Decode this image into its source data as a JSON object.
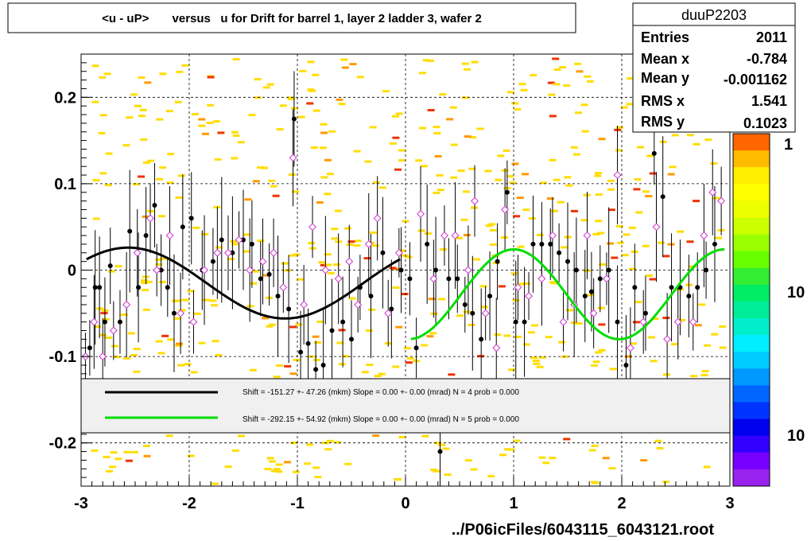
{
  "chart_data": {
    "type": "scatter",
    "title": "<u - uP>       versus   u for Drift for barrel 1, layer 2 ladder 3, wafer 2",
    "xlabel": "../P06icFiles/6043115_6043121.root",
    "ylabel": "",
    "xlim": [
      -3,
      3
    ],
    "ylim": [
      -0.25,
      0.25
    ],
    "x_ticks": [
      "-3",
      "-2",
      "-1",
      "0",
      "1",
      "2",
      "3"
    ],
    "y_ticks": [
      "-0.2",
      "-0.1",
      "0",
      "0.1",
      "0.2"
    ],
    "grid": true,
    "stats": {
      "name": "duuP2203",
      "rows": [
        {
          "label": "Entries",
          "value": "2011"
        },
        {
          "label": "Mean x",
          "value": "-0.784"
        },
        {
          "label": "Mean y",
          "value": "-0.001162"
        },
        {
          "label": "RMS x",
          "value": "1.541"
        },
        {
          "label": "RMS y",
          "value": "0.1023"
        }
      ]
    },
    "legend": [
      {
        "color": "#000000",
        "text": "Shift =  -151.27 +- 47.26 (mkm) Slope =     0.00 +- 0.00 (mrad)  N = 4 prob = 0.000"
      },
      {
        "color": "#00dd00",
        "text": "Shift =  -292.15 +- 54.92 (mkm) Slope =     0.00 +- 0.00 (mrad)  N = 5 prob = 0.000"
      }
    ],
    "palette_labels": [
      "1",
      "10",
      "10"
    ],
    "fits": [
      {
        "color": "#000000",
        "x_range": [
          -2.95,
          -0.05
        ],
        "offset": -0.015,
        "amplitude": 0.041,
        "freq": 2.166,
        "phase": -5.44
      },
      {
        "color": "#00dd00",
        "x_range": [
          0.05,
          2.95
        ],
        "offset": -0.028,
        "amplitude": 0.052,
        "freq": 3.226,
        "phase": -1.66
      }
    ],
    "profile_black": [
      {
        "x": -2.92,
        "y": -0.09
      },
      {
        "x": -2.87,
        "y": -0.02
      },
      {
        "x": -2.83,
        "y": -0.02
      },
      {
        "x": -2.78,
        "y": -0.06
      },
      {
        "x": -2.73,
        "y": 0.005
      },
      {
        "x": -2.64,
        "y": -0.06
      },
      {
        "x": -2.55,
        "y": 0.045
      },
      {
        "x": -2.47,
        "y": -0.02
      },
      {
        "x": -2.4,
        "y": 0.04
      },
      {
        "x": -2.32,
        "y": 0.075
      },
      {
        "x": -2.26,
        "y": 0.0
      },
      {
        "x": -2.2,
        "y": -0.02
      },
      {
        "x": -2.14,
        "y": -0.05
      },
      {
        "x": -2.06,
        "y": 0.05
      },
      {
        "x": -1.98,
        "y": 0.06
      },
      {
        "x": -1.88,
        "y": 0.0
      },
      {
        "x": -1.78,
        "y": 0.01
      },
      {
        "x": -1.7,
        "y": 0.035
      },
      {
        "x": -1.6,
        "y": 0.02
      },
      {
        "x": -1.5,
        "y": 0.035
      },
      {
        "x": -1.42,
        "y": 0.03
      },
      {
        "x": -1.34,
        "y": -0.01
      },
      {
        "x": -1.26,
        "y": -0.005
      },
      {
        "x": -1.18,
        "y": -0.03
      },
      {
        "x": -1.08,
        "y": -0.045
      },
      {
        "x": -1.03,
        "y": 0.175
      },
      {
        "x": -0.97,
        "y": -0.095
      },
      {
        "x": -0.9,
        "y": -0.085
      },
      {
        "x": -0.83,
        "y": -0.115
      },
      {
        "x": -0.76,
        "y": -0.11
      },
      {
        "x": -0.68,
        "y": -0.07
      },
      {
        "x": -0.58,
        "y": -0.06
      },
      {
        "x": -0.5,
        "y": -0.08
      },
      {
        "x": -0.42,
        "y": -0.02
      },
      {
        "x": -0.32,
        "y": -0.03
      },
      {
        "x": -0.21,
        "y": 0.02
      },
      {
        "x": -0.13,
        "y": -0.045
      },
      {
        "x": -0.04,
        "y": 0.0
      },
      {
        "x": 0.04,
        "y": -0.01
      },
      {
        "x": 0.1,
        "y": -0.09
      },
      {
        "x": 0.2,
        "y": 0.03
      },
      {
        "x": 0.28,
        "y": 0.0
      },
      {
        "x": 0.32,
        "y": -0.21
      },
      {
        "x": 0.4,
        "y": -0.01
      },
      {
        "x": 0.48,
        "y": -0.01
      },
      {
        "x": 0.55,
        "y": -0.04
      },
      {
        "x": 0.62,
        "y": -0.05
      },
      {
        "x": 0.7,
        "y": -0.08
      },
      {
        "x": 0.78,
        "y": -0.03
      },
      {
        "x": 0.85,
        "y": 0.01
      },
      {
        "x": 0.94,
        "y": 0.09
      },
      {
        "x": 1.02,
        "y": -0.06
      },
      {
        "x": 1.1,
        "y": -0.06
      },
      {
        "x": 1.18,
        "y": 0.03
      },
      {
        "x": 1.26,
        "y": 0.03
      },
      {
        "x": 1.34,
        "y": 0.03
      },
      {
        "x": 1.42,
        "y": 0.02
      },
      {
        "x": 1.5,
        "y": 0.01
      },
      {
        "x": 1.58,
        "y": 0.0
      },
      {
        "x": 1.66,
        "y": -0.03
      },
      {
        "x": 1.72,
        "y": -0.025
      },
      {
        "x": 1.8,
        "y": -0.01
      },
      {
        "x": 1.88,
        "y": 0.0
      },
      {
        "x": 1.96,
        "y": -0.06
      },
      {
        "x": 2.04,
        "y": -0.11
      },
      {
        "x": 2.12,
        "y": -0.02
      },
      {
        "x": 2.22,
        "y": -0.05
      },
      {
        "x": 2.3,
        "y": 0.135
      },
      {
        "x": 2.38,
        "y": 0.085
      },
      {
        "x": 2.46,
        "y": -0.02
      },
      {
        "x": 2.54,
        "y": -0.02
      },
      {
        "x": 2.62,
        "y": -0.03
      },
      {
        "x": 2.7,
        "y": -0.02
      },
      {
        "x": 2.78,
        "y": 0.0
      },
      {
        "x": 2.86,
        "y": 0.03
      }
    ],
    "profile_open": [
      {
        "x": -2.96,
        "y": -0.1
      },
      {
        "x": -2.88,
        "y": -0.06
      },
      {
        "x": -2.8,
        "y": -0.1
      },
      {
        "x": -2.7,
        "y": -0.07
      },
      {
        "x": -2.58,
        "y": -0.04
      },
      {
        "x": -2.48,
        "y": 0.02
      },
      {
        "x": -2.36,
        "y": 0.06
      },
      {
        "x": -2.3,
        "y": 0.0
      },
      {
        "x": -2.18,
        "y": 0.04
      },
      {
        "x": -2.08,
        "y": -0.05
      },
      {
        "x": -1.96,
        "y": -0.06
      },
      {
        "x": -1.86,
        "y": 0.0
      },
      {
        "x": -1.74,
        "y": 0.02
      },
      {
        "x": -1.64,
        "y": 0.02
      },
      {
        "x": -1.54,
        "y": 0.035
      },
      {
        "x": -1.44,
        "y": 0.0
      },
      {
        "x": -1.32,
        "y": 0.01
      },
      {
        "x": -1.22,
        "y": 0.02
      },
      {
        "x": -1.13,
        "y": -0.02
      },
      {
        "x": -1.04,
        "y": 0.13
      },
      {
        "x": -0.94,
        "y": -0.04
      },
      {
        "x": -0.86,
        "y": 0.05
      },
      {
        "x": -0.74,
        "y": 0.0
      },
      {
        "x": -0.62,
        "y": -0.01
      },
      {
        "x": -0.52,
        "y": 0.01
      },
      {
        "x": -0.44,
        "y": -0.04
      },
      {
        "x": -0.34,
        "y": 0.03
      },
      {
        "x": -0.26,
        "y": 0.06
      },
      {
        "x": -0.16,
        "y": -0.05
      },
      {
        "x": -0.06,
        "y": 0.02
      },
      {
        "x": 0.14,
        "y": 0.065
      },
      {
        "x": 0.26,
        "y": -0.01
      },
      {
        "x": 0.36,
        "y": 0.04
      },
      {
        "x": 0.46,
        "y": 0.04
      },
      {
        "x": 0.58,
        "y": 0.0
      },
      {
        "x": 0.64,
        "y": 0.08
      },
      {
        "x": 0.74,
        "y": -0.05
      },
      {
        "x": 0.84,
        "y": -0.09
      },
      {
        "x": 0.92,
        "y": 0.07
      },
      {
        "x": 1.04,
        "y": -0.02
      },
      {
        "x": 1.14,
        "y": -0.03
      },
      {
        "x": 1.26,
        "y": -0.01
      },
      {
        "x": 1.36,
        "y": 0.04
      },
      {
        "x": 1.46,
        "y": -0.06
      },
      {
        "x": 1.56,
        "y": -0.04
      },
      {
        "x": 1.68,
        "y": 0.04
      },
      {
        "x": 1.74,
        "y": -0.05
      },
      {
        "x": 1.86,
        "y": -0.01
      },
      {
        "x": 1.96,
        "y": 0.11
      },
      {
        "x": 2.08,
        "y": -0.09
      },
      {
        "x": 2.2,
        "y": -0.06
      },
      {
        "x": 2.32,
        "y": 0.05
      },
      {
        "x": 2.42,
        "y": -0.08
      },
      {
        "x": 2.52,
        "y": -0.06
      },
      {
        "x": 2.66,
        "y": -0.06
      },
      {
        "x": 2.76,
        "y": 0.04
      },
      {
        "x": 2.84,
        "y": 0.09
      },
      {
        "x": 2.92,
        "y": 0.08
      }
    ]
  }
}
